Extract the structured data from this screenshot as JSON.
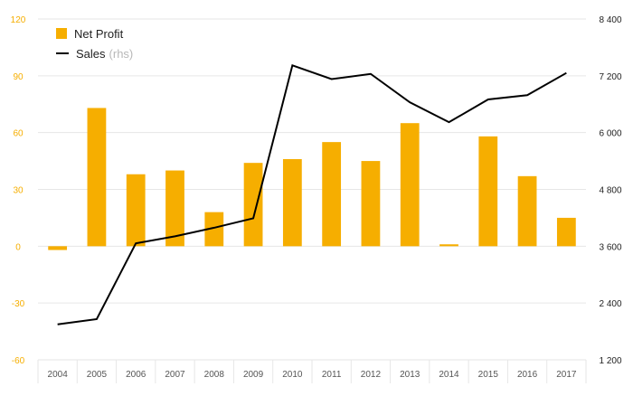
{
  "chart_data": {
    "type": "bar",
    "categories": [
      "2004",
      "2005",
      "2006",
      "2007",
      "2008",
      "2009",
      "2010",
      "2011",
      "2012",
      "2013",
      "2014",
      "2015",
      "2016",
      "2017"
    ],
    "series": [
      {
        "name": "Net Profit",
        "type": "bar",
        "axis": "left",
        "color": "#f6ae00",
        "values": [
          -2,
          73,
          38,
          40,
          18,
          44,
          46,
          55,
          45,
          65,
          1,
          58,
          37,
          15
        ]
      },
      {
        "name": "Sales",
        "type": "line",
        "axis": "right",
        "color": "#000000",
        "values": [
          1950,
          2060,
          3660,
          3810,
          3990,
          4190,
          7420,
          7130,
          7240,
          6640,
          6220,
          6700,
          6790,
          7260
        ]
      }
    ],
    "legend_note": "(rhs)",
    "y_left": {
      "ylim": [
        -60,
        120
      ],
      "ticks": [
        120,
        90,
        60,
        30,
        0,
        -30,
        -60
      ],
      "tick_labels": [
        "120",
        "90",
        "60",
        "30",
        "0",
        "-30",
        "-60"
      ],
      "color": "#f6ae00"
    },
    "y_right": {
      "ylim": [
        1200,
        8400
      ],
      "ticks": [
        8400,
        7200,
        6000,
        4800,
        3600,
        2400,
        1200
      ],
      "tick_labels": [
        "8 400",
        "7 200",
        "6 000",
        "4 800",
        "3 600",
        "2 400",
        "1 200"
      ],
      "color": "#222222"
    },
    "grid": true,
    "legend_position": "top-left"
  }
}
